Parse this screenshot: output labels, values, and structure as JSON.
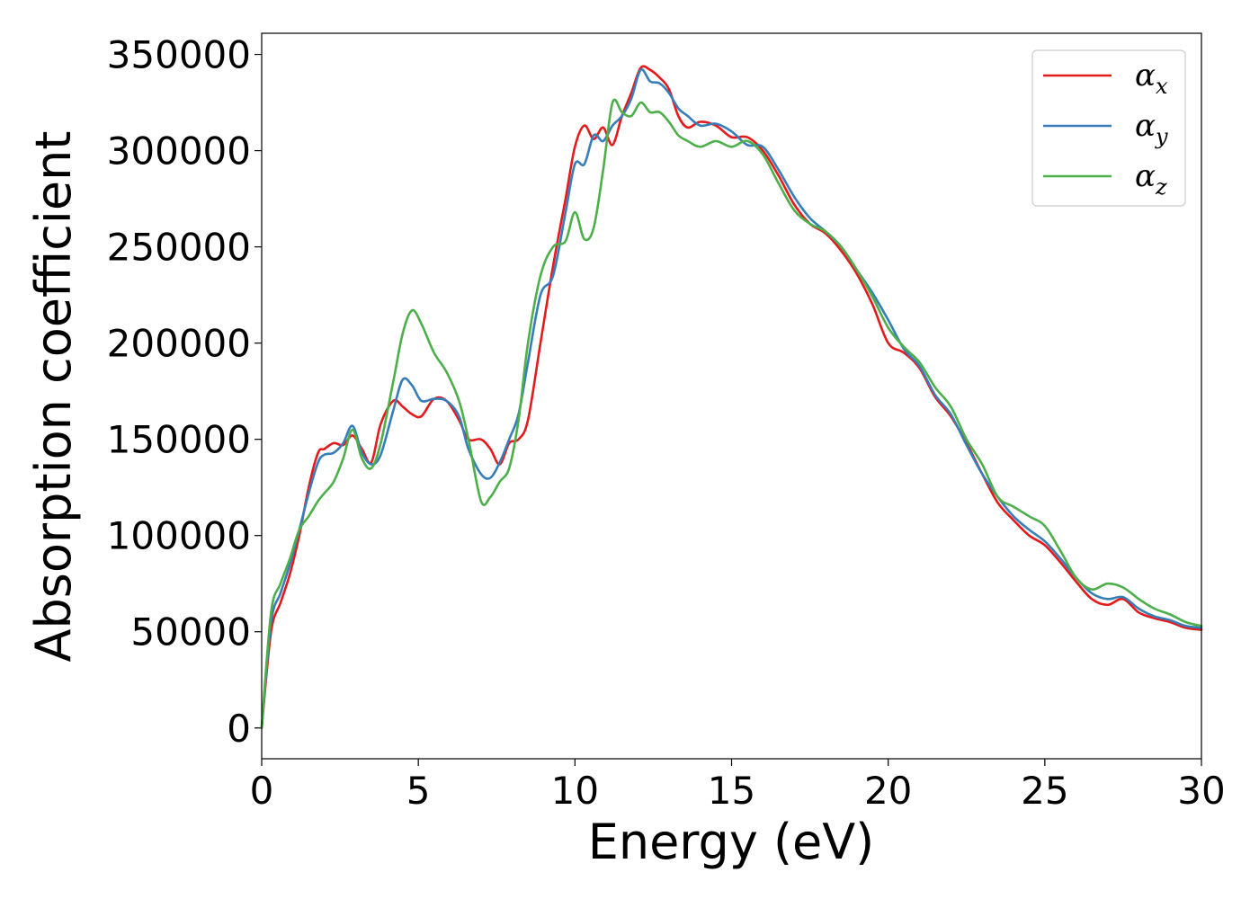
{
  "chart_data": {
    "type": "line",
    "title": "",
    "xlabel": "Energy (eV)",
    "ylabel": "Absorption coefficient",
    "xlim": [
      0,
      30
    ],
    "ylim": [
      -16000,
      361000
    ],
    "xticks": [
      "0",
      "5",
      "10",
      "15",
      "20",
      "25",
      "30"
    ],
    "xtick_values": [
      0,
      5,
      10,
      15,
      20,
      25,
      30
    ],
    "yticks": [
      "0",
      "50000",
      "100000",
      "150000",
      "200000",
      "250000",
      "300000",
      "350000"
    ],
    "ytick_values": [
      0,
      50000,
      100000,
      150000,
      200000,
      250000,
      300000,
      350000
    ],
    "grid": false,
    "legend_position": "top-right",
    "series": [
      {
        "name": "α_x",
        "symbol": "α",
        "subscript": "x",
        "color": "#e41a1c",
        "x": [
          0,
          0.3,
          0.6,
          0.9,
          1.2,
          1.5,
          1.8,
          2.0,
          2.3,
          2.6,
          2.9,
          3.2,
          3.5,
          3.8,
          4.2,
          4.5,
          4.8,
          5.1,
          5.5,
          5.9,
          6.3,
          6.6,
          7.0,
          7.3,
          7.6,
          7.9,
          8.2,
          8.5,
          8.9,
          9.3,
          9.7,
          10.0,
          10.3,
          10.6,
          10.9,
          11.2,
          11.5,
          11.8,
          12.1,
          12.4,
          12.7,
          13.0,
          13.3,
          13.6,
          14.0,
          14.5,
          15.0,
          15.5,
          16.0,
          16.5,
          17.0,
          17.5,
          18.0,
          18.5,
          19.0,
          19.5,
          20.0,
          20.5,
          21.0,
          21.5,
          22.0,
          22.5,
          23.0,
          23.5,
          24.0,
          24.5,
          25.0,
          25.5,
          26.0,
          26.5,
          27.0,
          27.5,
          28.0,
          28.5,
          29.0,
          29.5,
          30.0
        ],
        "values": [
          0,
          50000,
          65000,
          80000,
          100000,
          125000,
          143000,
          145000,
          148000,
          147000,
          152000,
          145000,
          138000,
          158000,
          170000,
          167000,
          163000,
          162000,
          171000,
          170000,
          160000,
          150000,
          150000,
          145000,
          137000,
          148000,
          150000,
          160000,
          200000,
          240000,
          275000,
          302000,
          313000,
          306000,
          312000,
          303000,
          318000,
          330000,
          343000,
          342000,
          338000,
          332000,
          318000,
          312000,
          315000,
          313000,
          307000,
          307000,
          300000,
          287000,
          272000,
          262000,
          257000,
          248000,
          236000,
          220000,
          200000,
          195000,
          187000,
          172000,
          162000,
          148000,
          132000,
          117000,
          108000,
          100000,
          95000,
          86000,
          76000,
          67000,
          64000,
          67000,
          60000,
          57000,
          55000,
          52000,
          51000
        ]
      },
      {
        "name": "α_y",
        "symbol": "α",
        "subscript": "y",
        "color": "#377eb8",
        "x": [
          0,
          0.3,
          0.6,
          0.9,
          1.2,
          1.5,
          1.8,
          2.0,
          2.3,
          2.6,
          2.9,
          3.2,
          3.5,
          3.8,
          4.2,
          4.5,
          4.8,
          5.1,
          5.5,
          5.9,
          6.3,
          6.6,
          7.0,
          7.3,
          7.6,
          7.9,
          8.2,
          8.5,
          8.9,
          9.3,
          9.7,
          10.0,
          10.3,
          10.6,
          10.9,
          11.2,
          11.5,
          11.8,
          12.1,
          12.4,
          12.7,
          13.0,
          13.3,
          13.6,
          14.0,
          14.5,
          15.0,
          15.5,
          16.0,
          16.5,
          17.0,
          17.5,
          18.0,
          18.5,
          19.0,
          19.5,
          20.0,
          20.5,
          21.0,
          21.5,
          22.0,
          22.5,
          23.0,
          23.5,
          24.0,
          24.5,
          25.0,
          25.5,
          26.0,
          26.5,
          27.0,
          27.5,
          28.0,
          28.5,
          29.0,
          29.5,
          30.0
        ],
        "values": [
          0,
          55000,
          70000,
          85000,
          103000,
          122000,
          138000,
          142000,
          143000,
          148000,
          157000,
          143000,
          137000,
          142000,
          165000,
          181000,
          178000,
          170000,
          171000,
          170000,
          162000,
          145000,
          132000,
          130000,
          138000,
          150000,
          163000,
          190000,
          225000,
          235000,
          268000,
          293000,
          293000,
          308000,
          305000,
          313000,
          318000,
          327000,
          342000,
          336000,
          335000,
          330000,
          322000,
          318000,
          313000,
          314000,
          310000,
          303000,
          302000,
          290000,
          276000,
          265000,
          258000,
          250000,
          238000,
          226000,
          212000,
          197000,
          188000,
          173000,
          163000,
          147000,
          132000,
          120000,
          110000,
          103000,
          97000,
          88000,
          78000,
          70000,
          67000,
          68000,
          62000,
          58000,
          56000,
          53000,
          52000
        ]
      },
      {
        "name": "α_z",
        "symbol": "α",
        "subscript": "z",
        "color": "#4daf4a",
        "x": [
          0,
          0.3,
          0.6,
          0.9,
          1.2,
          1.5,
          1.8,
          2.0,
          2.3,
          2.6,
          2.9,
          3.2,
          3.5,
          3.8,
          4.2,
          4.5,
          4.8,
          5.1,
          5.5,
          5.9,
          6.3,
          6.6,
          7.0,
          7.3,
          7.6,
          7.9,
          8.2,
          8.5,
          8.9,
          9.3,
          9.7,
          10.0,
          10.3,
          10.6,
          10.9,
          11.2,
          11.5,
          11.8,
          12.1,
          12.4,
          12.7,
          13.0,
          13.3,
          13.6,
          14.0,
          14.5,
          15.0,
          15.5,
          16.0,
          16.5,
          17.0,
          17.5,
          18.0,
          18.5,
          19.0,
          19.5,
          20.0,
          20.5,
          21.0,
          21.5,
          22.0,
          22.5,
          23.0,
          23.5,
          24.0,
          24.5,
          25.0,
          25.5,
          26.0,
          26.5,
          27.0,
          27.5,
          28.0,
          28.5,
          29.0,
          29.5,
          30.0
        ],
        "values": [
          0,
          60000,
          75000,
          88000,
          103000,
          110000,
          118000,
          122000,
          128000,
          140000,
          155000,
          140000,
          135000,
          148000,
          180000,
          205000,
          217000,
          210000,
          195000,
          185000,
          170000,
          150000,
          118000,
          120000,
          128000,
          135000,
          160000,
          200000,
          235000,
          250000,
          253000,
          268000,
          254000,
          260000,
          290000,
          325000,
          320000,
          318000,
          325000,
          320000,
          320000,
          315000,
          308000,
          305000,
          302000,
          305000,
          302000,
          305000,
          298000,
          283000,
          269000,
          262000,
          258000,
          250000,
          238000,
          224000,
          208000,
          198000,
          190000,
          177000,
          167000,
          150000,
          137000,
          120000,
          115000,
          110000,
          105000,
          92000,
          78000,
          72000,
          75000,
          73000,
          67000,
          62000,
          59000,
          55000,
          53000
        ]
      }
    ]
  }
}
